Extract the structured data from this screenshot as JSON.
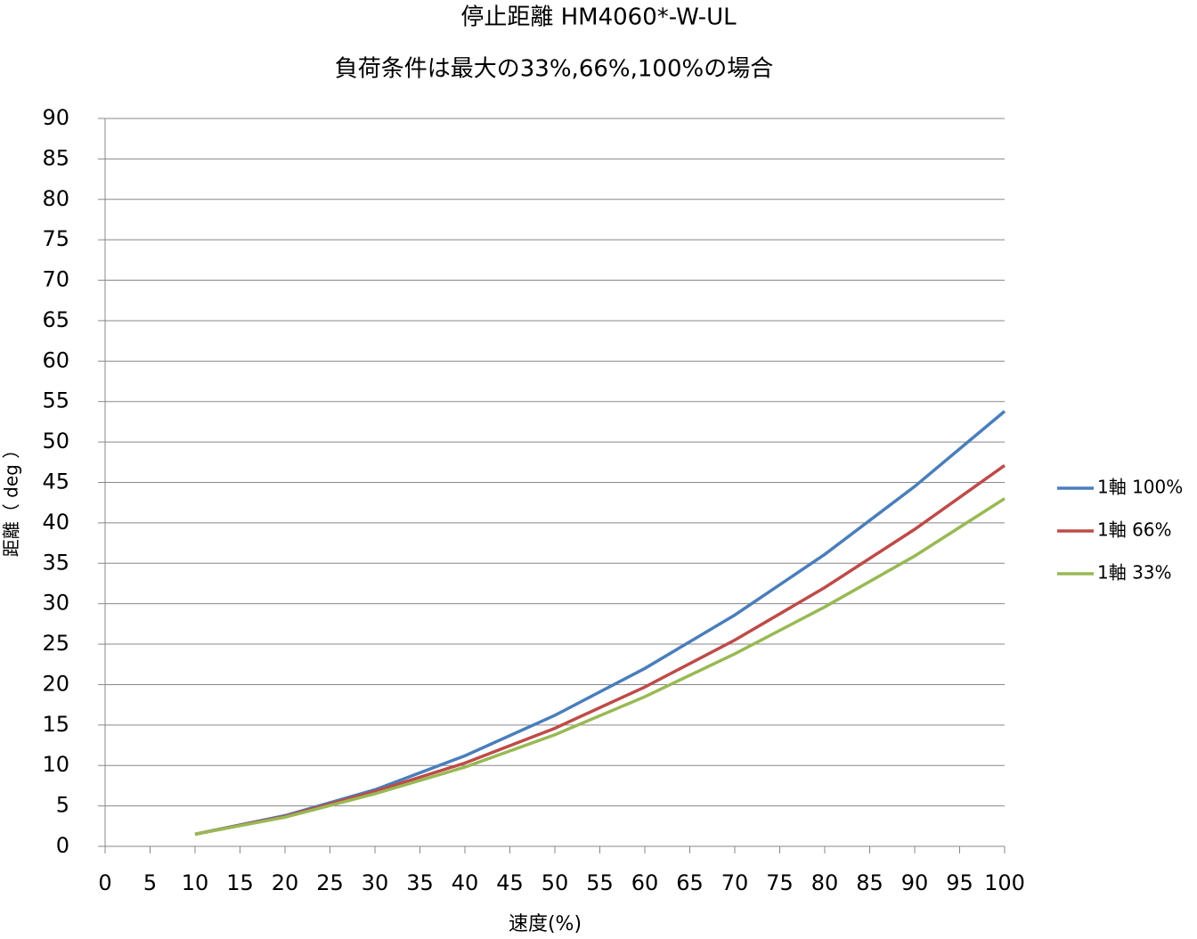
{
  "chart_data": {
    "type": "line",
    "title": "停止距離 HM4060*-W-UL",
    "subtitle": "負荷条件は最大の33%,66%,100%の場合",
    "x_label": "速度(%)",
    "y_label": "距離（ deg ）",
    "x": [
      10,
      20,
      30,
      40,
      50,
      60,
      70,
      80,
      90,
      100
    ],
    "series": [
      {
        "name": "1軸 100%",
        "color": "#4a7ebb",
        "values": [
          1.5,
          3.8,
          7.0,
          11.2,
          16.2,
          22.0,
          28.6,
          36.1,
          44.5,
          53.8
        ]
      },
      {
        "name": "1軸 66%",
        "color": "#be4b48",
        "values": [
          1.5,
          3.7,
          6.8,
          10.3,
          14.6,
          19.7,
          25.5,
          32.0,
          39.2,
          47.1
        ]
      },
      {
        "name": "1軸 33%",
        "color": "#98b954",
        "values": [
          1.5,
          3.6,
          6.5,
          9.8,
          13.8,
          18.5,
          23.8,
          29.6,
          35.9,
          43.0
        ]
      }
    ],
    "xlim": [
      0,
      100
    ],
    "xticks": [
      0,
      5,
      10,
      15,
      20,
      25,
      30,
      35,
      40,
      45,
      50,
      55,
      60,
      65,
      70,
      75,
      80,
      85,
      90,
      95,
      100
    ],
    "ylim": [
      0,
      90
    ],
    "yticks": [
      0,
      5,
      10,
      15,
      20,
      25,
      30,
      35,
      40,
      45,
      50,
      55,
      60,
      65,
      70,
      75,
      80,
      85,
      90
    ],
    "grid": true,
    "legend": "right"
  }
}
